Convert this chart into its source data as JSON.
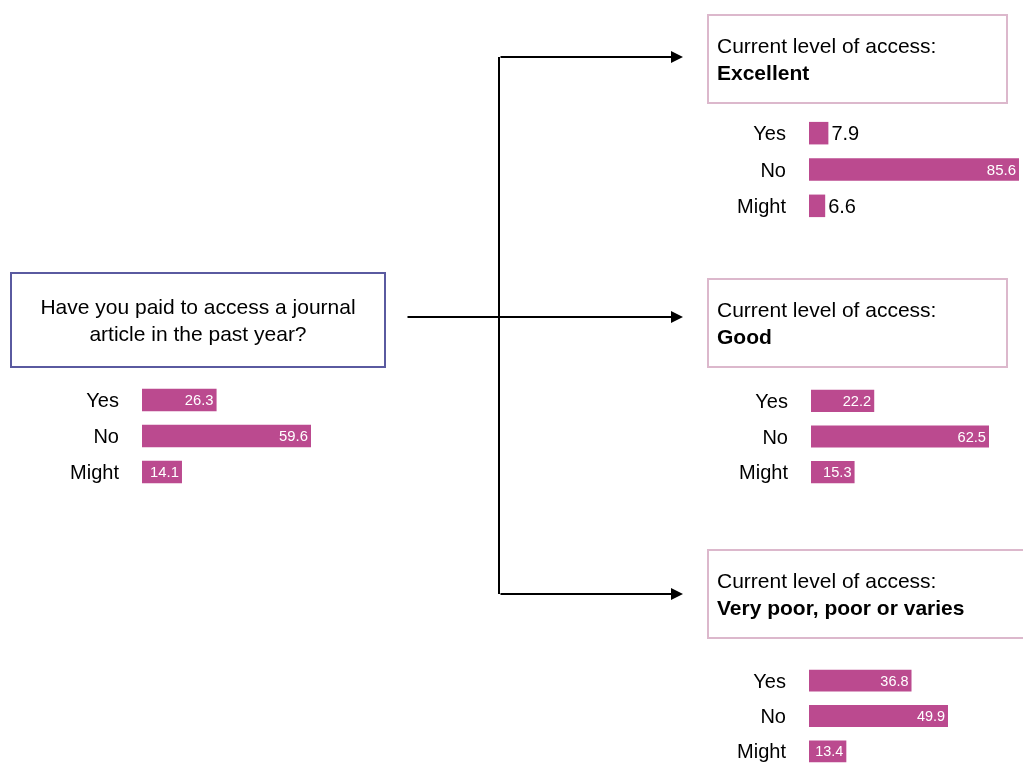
{
  "chart_data": [
    {
      "type": "bar",
      "orientation": "horizontal",
      "title": "Have you paid to access a journal article in the past year?",
      "categories": [
        "Yes",
        "No",
        "Might"
      ],
      "values": [
        26.3,
        59.6,
        14.1
      ],
      "color": "#bb4a8f",
      "data_labels": true
    },
    {
      "type": "bar",
      "orientation": "horizontal",
      "title": "Current level of access:",
      "subtitle": "Excellent",
      "categories": [
        "Yes",
        "No",
        "Might"
      ],
      "values": [
        7.9,
        85.6,
        6.6
      ],
      "color": "#bb4a8f",
      "data_labels": true
    },
    {
      "type": "bar",
      "orientation": "horizontal",
      "title": "Current level of access:",
      "subtitle": "Good",
      "categories": [
        "Yes",
        "No",
        "Might"
      ],
      "values": [
        22.2,
        62.5,
        15.3
      ],
      "color": "#bb4a8f",
      "data_labels": true
    },
    {
      "type": "bar",
      "orientation": "horizontal",
      "title": "Current level of access:",
      "subtitle": "Very poor, poor or varies",
      "categories": [
        "Yes",
        "No",
        "Might"
      ],
      "values": [
        36.8,
        49.9,
        13.4
      ],
      "color": "#bb4a8f",
      "data_labels": true
    }
  ]
}
